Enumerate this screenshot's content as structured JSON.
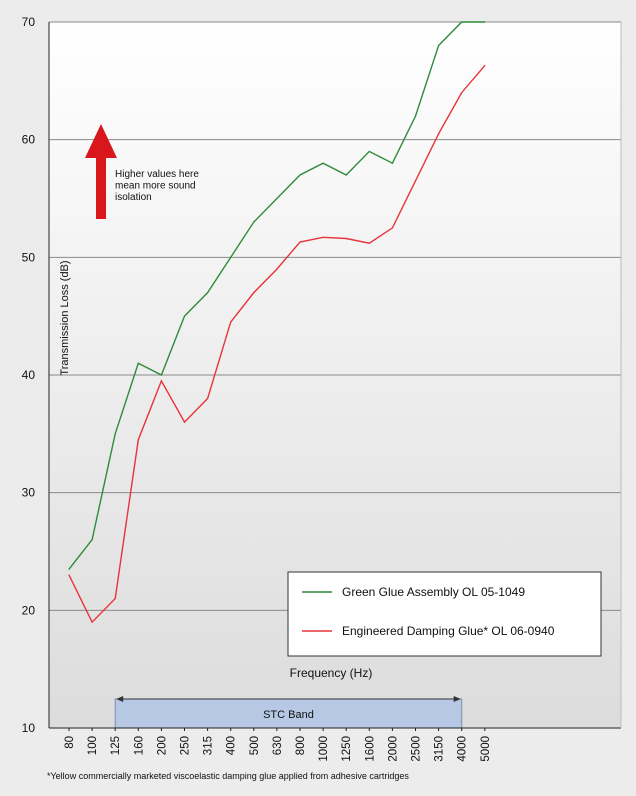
{
  "chart_data": {
    "type": "line",
    "ylabel": "Transmission Loss (dB)",
    "xlabel": "Frequency (Hz)",
    "ylim": [
      10,
      70
    ],
    "yticks": [
      10,
      20,
      30,
      40,
      50,
      60,
      70
    ],
    "grid": true,
    "legend_position": "lower-right",
    "categories": [
      "80",
      "100",
      "125",
      "160",
      "200",
      "250",
      "315",
      "400",
      "500",
      "630",
      "800",
      "1000",
      "1250",
      "1600",
      "2000",
      "2500",
      "3150",
      "4000",
      "5000"
    ],
    "series": [
      {
        "name": "Green Glue Assembly OL 05-1049",
        "color": "#2e8b3a",
        "values": [
          23.5,
          26,
          35,
          41,
          40,
          45,
          47,
          50,
          53,
          55,
          57,
          58,
          57,
          59,
          58,
          62,
          68,
          70,
          70
        ]
      },
      {
        "name": "Engineered Damping Glue* OL 06-0940",
        "color": "#e8333a",
        "values": [
          23,
          19,
          21,
          34.5,
          39.5,
          36,
          38,
          44.5,
          47,
          49,
          51.3,
          51.7,
          51.6,
          51.2,
          52.5,
          56.5,
          60.5,
          64,
          66.3
        ]
      }
    ],
    "annotation": {
      "text": "Higher values here mean more sound isolation",
      "lines": [
        "Higher values here",
        "mean more sound",
        "isolation"
      ],
      "arrow_color": "#d9161c"
    },
    "band": {
      "label": "STC Band",
      "from": "125",
      "to": "4000",
      "color": "#b6c8e4"
    },
    "footnote": "*Yellow commercially marketed viscoelastic damping glue applied from adhesive cartridges"
  }
}
